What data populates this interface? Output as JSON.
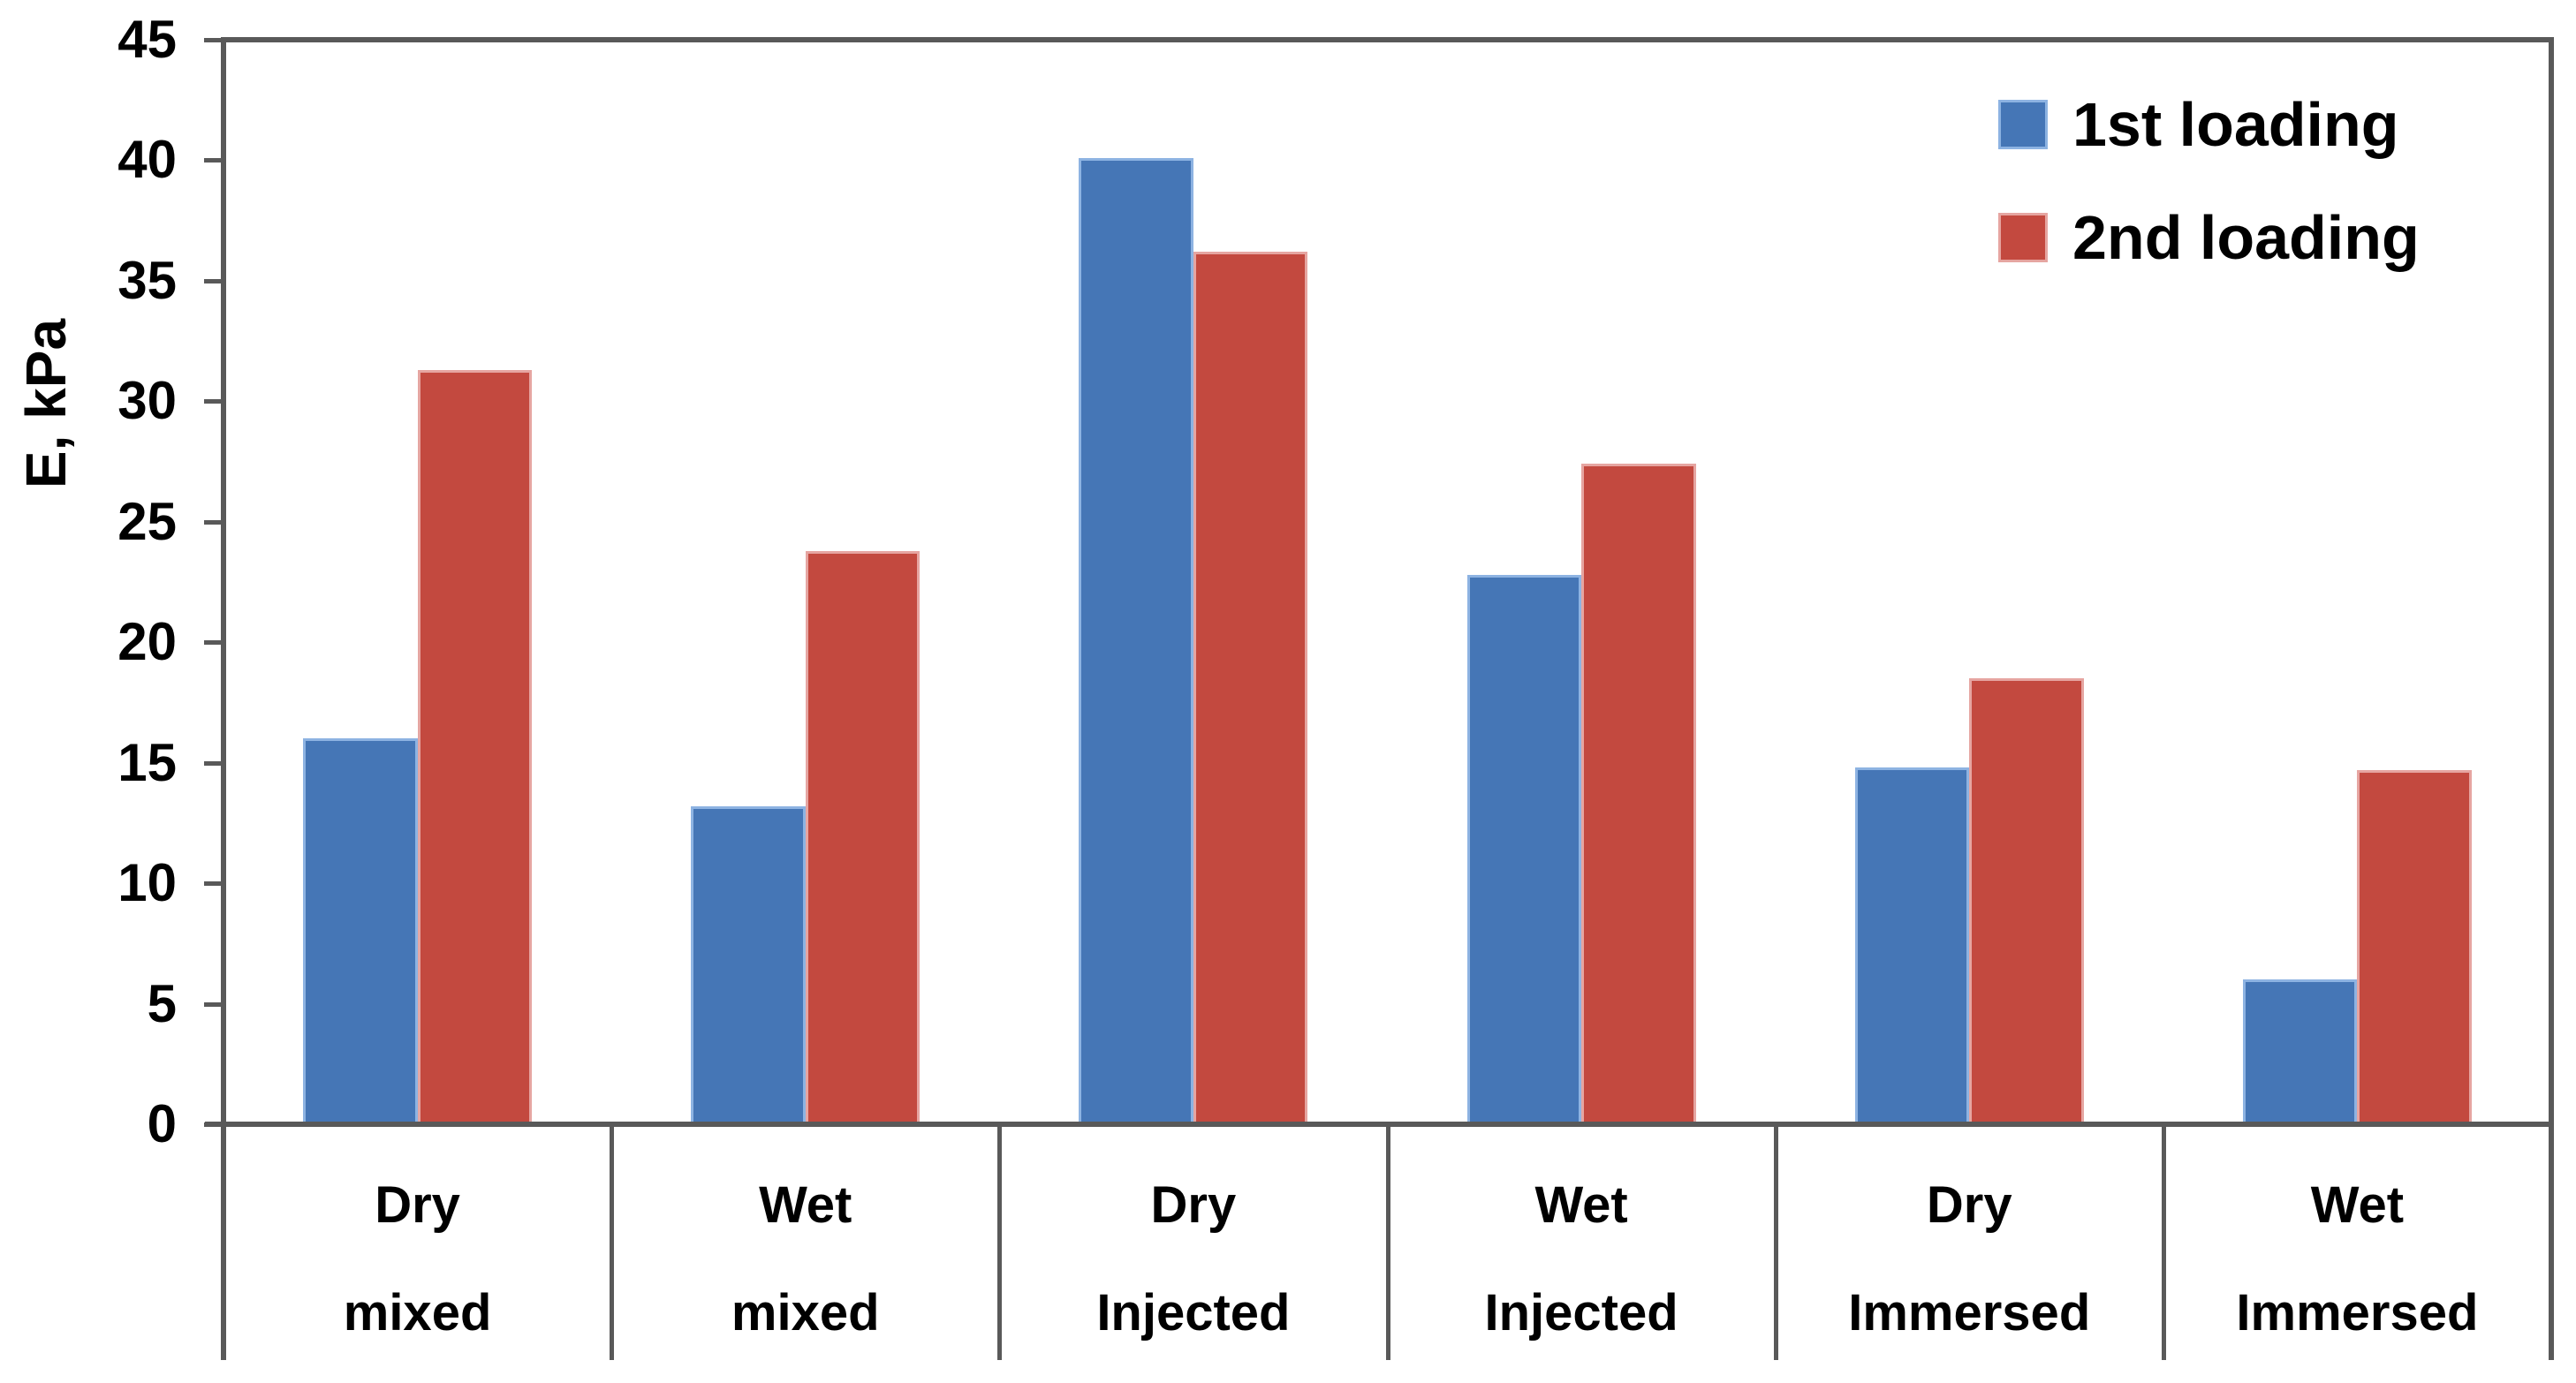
{
  "chart_data": {
    "type": "bar",
    "title": "",
    "ylabel": "E, kPa",
    "xlabel": "",
    "ylim": [
      0,
      45
    ],
    "yticks": [
      0,
      5,
      10,
      15,
      20,
      25,
      30,
      35,
      40,
      45
    ],
    "grid": false,
    "legend_position": "top-right",
    "categories": [
      {
        "condition": "Dry",
        "group": "mixed"
      },
      {
        "condition": "Wet",
        "group": "mixed"
      },
      {
        "condition": "Dry",
        "group": "Injected"
      },
      {
        "condition": "Wet",
        "group": "Injected"
      },
      {
        "condition": "Dry",
        "group": "Immersed"
      },
      {
        "condition": "Wet",
        "group": "Immersed"
      }
    ],
    "series": [
      {
        "name": "1st loading",
        "color": "#4576b6",
        "border_color": "#8db3e2",
        "values": [
          16.0,
          13.2,
          40.1,
          22.8,
          14.8,
          6.0
        ]
      },
      {
        "name": "2nd loading",
        "color": "#c3493f",
        "border_color": "#e6a5a1",
        "values": [
          31.3,
          23.8,
          36.2,
          27.4,
          18.5,
          14.7
        ]
      }
    ]
  },
  "style_colors": {
    "axis": "#595959",
    "text": "#000000"
  }
}
